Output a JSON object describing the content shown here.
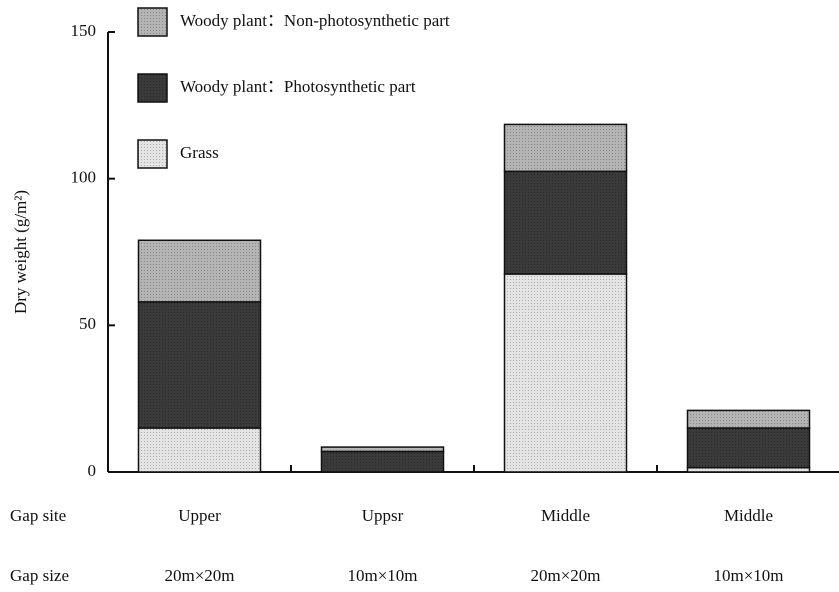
{
  "chart_data": {
    "type": "stacked_bar",
    "ylabel": "Dry weight (g/m²)",
    "row_labels": [
      "Gap site",
      "Gap size"
    ],
    "categories": [
      "Upper",
      "Uppsr",
      "Middle",
      "Middle"
    ],
    "categories2": [
      "20m×20m",
      "10m×10m",
      "20m×20m",
      "10m×10m"
    ],
    "series": [
      {
        "name": "Grass",
        "color": "#e4e4e4",
        "values": [
          15,
          0,
          67.5,
          1.5
        ]
      },
      {
        "name": "Woody plant：Photosynthetic part",
        "color": "#3a3a3a",
        "values": [
          43,
          7,
          35,
          13.5
        ]
      },
      {
        "name": "Woody plant：Non-photosynthetic part",
        "color": "#b4b4b4",
        "values": [
          21,
          1.5,
          16,
          6
        ]
      }
    ],
    "ylim": [
      0,
      150
    ],
    "yticks": [
      0,
      50,
      100,
      150
    ],
    "grid": false,
    "legend": "top-left"
  }
}
